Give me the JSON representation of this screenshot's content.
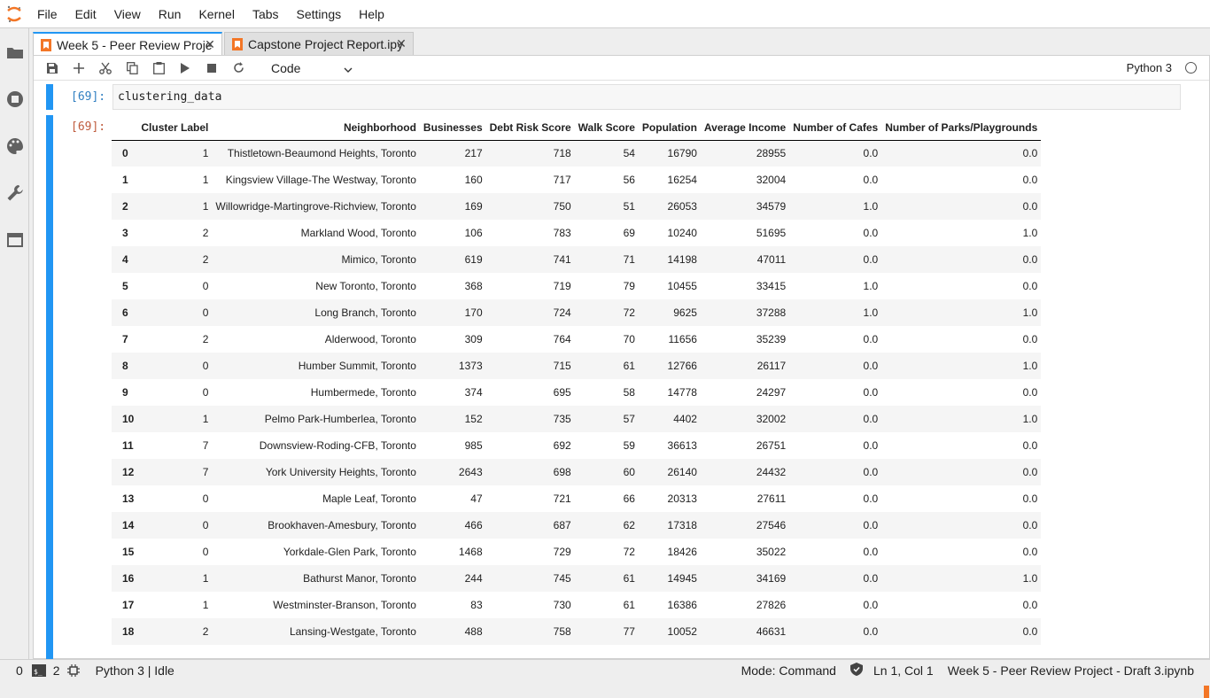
{
  "menu": [
    "File",
    "Edit",
    "View",
    "Run",
    "Kernel",
    "Tabs",
    "Settings",
    "Help"
  ],
  "tabs": [
    {
      "label": "Week 5 - Peer Review Proje",
      "active": true
    },
    {
      "label": "Capstone Project Report.ipy",
      "active": false
    }
  ],
  "toolbar": {
    "cell_type": "Code",
    "kernel": "Python 3"
  },
  "cell": {
    "in_prompt": "[69]:",
    "code": "clustering_data",
    "out_prompt": "[69]:"
  },
  "table": {
    "columns": [
      "",
      "Cluster Label",
      "Neighborhood",
      "Businesses",
      "Debt Risk Score",
      "Walk Score",
      "Population",
      "Average Income",
      "Number of Cafes",
      "Number of Parks/Playgrounds"
    ],
    "rows": [
      [
        "0",
        "1",
        "Thistletown-Beaumond Heights, Toronto",
        "217",
        "718",
        "54",
        "16790",
        "28955",
        "0.0",
        "0.0"
      ],
      [
        "1",
        "1",
        "Kingsview Village-The Westway, Toronto",
        "160",
        "717",
        "56",
        "16254",
        "32004",
        "0.0",
        "0.0"
      ],
      [
        "2",
        "1",
        "Willowridge-Martingrove-Richview, Toronto",
        "169",
        "750",
        "51",
        "26053",
        "34579",
        "1.0",
        "0.0"
      ],
      [
        "3",
        "2",
        "Markland Wood, Toronto",
        "106",
        "783",
        "69",
        "10240",
        "51695",
        "0.0",
        "1.0"
      ],
      [
        "4",
        "2",
        "Mimico, Toronto",
        "619",
        "741",
        "71",
        "14198",
        "47011",
        "0.0",
        "0.0"
      ],
      [
        "5",
        "0",
        "New Toronto, Toronto",
        "368",
        "719",
        "79",
        "10455",
        "33415",
        "1.0",
        "0.0"
      ],
      [
        "6",
        "0",
        "Long Branch, Toronto",
        "170",
        "724",
        "72",
        "9625",
        "37288",
        "1.0",
        "1.0"
      ],
      [
        "7",
        "2",
        "Alderwood, Toronto",
        "309",
        "764",
        "70",
        "11656",
        "35239",
        "0.0",
        "0.0"
      ],
      [
        "8",
        "0",
        "Humber Summit, Toronto",
        "1373",
        "715",
        "61",
        "12766",
        "26117",
        "0.0",
        "1.0"
      ],
      [
        "9",
        "0",
        "Humbermede, Toronto",
        "374",
        "695",
        "58",
        "14778",
        "24297",
        "0.0",
        "0.0"
      ],
      [
        "10",
        "1",
        "Pelmo Park-Humberlea, Toronto",
        "152",
        "735",
        "57",
        "4402",
        "32002",
        "0.0",
        "1.0"
      ],
      [
        "11",
        "7",
        "Downsview-Roding-CFB, Toronto",
        "985",
        "692",
        "59",
        "36613",
        "26751",
        "0.0",
        "0.0"
      ],
      [
        "12",
        "7",
        "York University Heights, Toronto",
        "2643",
        "698",
        "60",
        "26140",
        "24432",
        "0.0",
        "0.0"
      ],
      [
        "13",
        "0",
        "Maple Leaf, Toronto",
        "47",
        "721",
        "66",
        "20313",
        "27611",
        "0.0",
        "0.0"
      ],
      [
        "14",
        "0",
        "Brookhaven-Amesbury, Toronto",
        "466",
        "687",
        "62",
        "17318",
        "27546",
        "0.0",
        "0.0"
      ],
      [
        "15",
        "0",
        "Yorkdale-Glen Park, Toronto",
        "1468",
        "729",
        "72",
        "18426",
        "35022",
        "0.0",
        "0.0"
      ],
      [
        "16",
        "1",
        "Bathurst Manor, Toronto",
        "244",
        "745",
        "61",
        "14945",
        "34169",
        "0.0",
        "1.0"
      ],
      [
        "17",
        "1",
        "Westminster-Branson, Toronto",
        "83",
        "730",
        "61",
        "16386",
        "27826",
        "0.0",
        "0.0"
      ],
      [
        "18",
        "2",
        "Lansing-Westgate, Toronto",
        "488",
        "758",
        "77",
        "10052",
        "46631",
        "0.0",
        "0.0"
      ]
    ]
  },
  "status": {
    "left_count_1": "0",
    "left_count_2": "2",
    "kernel_state": "Python 3 | Idle",
    "mode": "Mode: Command",
    "position": "Ln 1, Col 1",
    "filename": "Week 5 - Peer Review Project - Draft 3.ipynb"
  },
  "colors": {
    "accent": "#2196f3",
    "jupyter_orange": "#f37626"
  }
}
